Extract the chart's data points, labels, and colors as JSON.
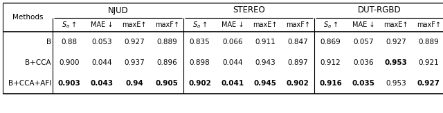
{
  "bg_color": "#ffffff",
  "methods": [
    "B",
    "B+CCA",
    "B+CCA+AFI"
  ],
  "datasets": [
    "NJUD",
    "STEREO",
    "DUT-RGBD"
  ],
  "col_headers": [
    "$S_a$ ↑",
    "MAE ↓",
    "maxE↑",
    "maxF↑"
  ],
  "data": {
    "NJUD": {
      "B": [
        "0.88",
        "0.053",
        "0.927",
        "0.889"
      ],
      "B+CCA": [
        "0.900",
        "0.044",
        "0.937",
        "0.896"
      ],
      "B+CCA+AFI": [
        "0.903",
        "0.043",
        "0.94",
        "0.905"
      ]
    },
    "STEREO": {
      "B": [
        "0.835",
        "0.066",
        "0.911",
        "0.847"
      ],
      "B+CCA": [
        "0.898",
        "0.044",
        "0.943",
        "0.897"
      ],
      "B+CCA+AFI": [
        "0.902",
        "0.041",
        "0.945",
        "0.902"
      ]
    },
    "DUT-RGBD": {
      "B": [
        "0.869",
        "0.057",
        "0.927",
        "0.889"
      ],
      "B+CCA": [
        "0.912",
        "0.036",
        "0.953",
        "0.921"
      ],
      "B+CCA+AFI": [
        "0.916",
        "0.035",
        "0.953",
        "0.927"
      ]
    }
  },
  "bold": {
    "NJUD": {
      "B": [
        false,
        false,
        false,
        false
      ],
      "B+CCA": [
        false,
        false,
        false,
        false
      ],
      "B+CCA+AFI": [
        true,
        true,
        true,
        true
      ]
    },
    "STEREO": {
      "B": [
        false,
        false,
        false,
        false
      ],
      "B+CCA": [
        false,
        false,
        false,
        false
      ],
      "B+CCA+AFI": [
        true,
        true,
        true,
        true
      ]
    },
    "DUT-RGBD": {
      "B": [
        false,
        false,
        false,
        false
      ],
      "B+CCA": [
        false,
        false,
        true,
        false
      ],
      "B+CCA+AFI": [
        true,
        true,
        false,
        true
      ]
    }
  },
  "font_size": 7.5,
  "header_font_size": 8.5,
  "lw": 0.8
}
